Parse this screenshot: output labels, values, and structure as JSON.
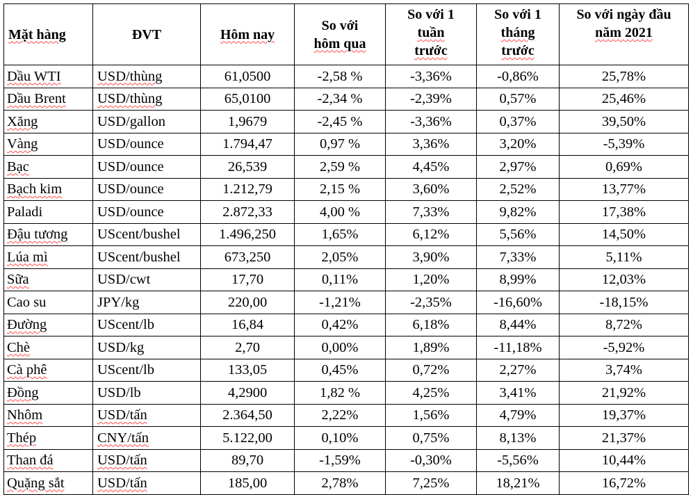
{
  "table": {
    "headers": {
      "item": "Mặt hàng",
      "unit": "ĐVT",
      "today": "Hôm nay",
      "vs_yesterday": [
        "So với",
        "hôm qua"
      ],
      "vs_week": [
        "So với 1",
        "tuần",
        "trước"
      ],
      "vs_month": [
        "So với 1",
        "tháng",
        "trước"
      ],
      "vs_year_start": [
        "So với ngày đầu",
        "năm 2021"
      ]
    },
    "rows": [
      {
        "item": "Dầu WTI",
        "unit": "USD/thùng",
        "today": "61,0500",
        "vs_yesterday": "-2,58 %",
        "vs_week": "-3,36%",
        "vs_month": "-0,86%",
        "vs_year_start": "25,78%"
      },
      {
        "item": "Dầu Brent",
        "unit": "USD/thùng",
        "today": "65,0100",
        "vs_yesterday": "-2,34 %",
        "vs_week": "-2,39%",
        "vs_month": "0,57%",
        "vs_year_start": "25,46%"
      },
      {
        "item": "Xăng",
        "unit": "USD/gallon",
        "today": "1,9679",
        "vs_yesterday": "-2,45 %",
        "vs_week": "-3,36%",
        "vs_month": "0,37%",
        "vs_year_start": "39,50%"
      },
      {
        "item": "Vàng",
        "unit": "USD/ounce",
        "today": "1.794,47",
        "vs_yesterday": "0,97 %",
        "vs_week": "3,36%",
        "vs_month": "3,20%",
        "vs_year_start": "-5,39%"
      },
      {
        "item": "Bạc",
        "unit": "USD/ounce",
        "today": "26,539",
        "vs_yesterday": "2,59 %",
        "vs_week": "4,45%",
        "vs_month": "2,97%",
        "vs_year_start": "0,69%"
      },
      {
        "item": "Bạch kim",
        "unit": "USD/ounce",
        "today": "1.212,79",
        "vs_yesterday": "2,15 %",
        "vs_week": "3,60%",
        "vs_month": "2,52%",
        "vs_year_start": "13,77%"
      },
      {
        "item": "Paladi",
        "unit": "USD/ounce",
        "today": "2.872,33",
        "vs_yesterday": "4,00 %",
        "vs_week": "7,33%",
        "vs_month": "9,82%",
        "vs_year_start": "17,38%"
      },
      {
        "item": "Đậu tương",
        "unit": "UScent/bushel",
        "today": "1.496,250",
        "vs_yesterday": "1,65%",
        "vs_week": "6,12%",
        "vs_month": "5,56%",
        "vs_year_start": "14,50%"
      },
      {
        "item": "Lúa mì",
        "unit": "UScent/bushel",
        "today": "673,250",
        "vs_yesterday": "2,05%",
        "vs_week": "3,90%",
        "vs_month": "7,33%",
        "vs_year_start": "5,11%"
      },
      {
        "item": "Sữa",
        "unit": "USD/cwt",
        "today": "17,70",
        "vs_yesterday": "0,11%",
        "vs_week": "1,20%",
        "vs_month": "8,99%",
        "vs_year_start": "12,03%"
      },
      {
        "item": "Cao su",
        "unit": "JPY/kg",
        "today": "220,00",
        "vs_yesterday": "-1,21%",
        "vs_week": "-2,35%",
        "vs_month": "-16,60%",
        "vs_year_start": "-18,15%"
      },
      {
        "item": "Đường",
        "unit": "UScent/lb",
        "today": "16,84",
        "vs_yesterday": "0,42%",
        "vs_week": "6,18%",
        "vs_month": "8,44%",
        "vs_year_start": "8,72%"
      },
      {
        "item": "Chè",
        "unit": "USD/kg",
        "today": "2,70",
        "vs_yesterday": "0,00%",
        "vs_week": "1,89%",
        "vs_month": "-11,18%",
        "vs_year_start": "-5,92%"
      },
      {
        "item": "Cà phê",
        "unit": "UScent/lb",
        "today": "133,05",
        "vs_yesterday": "0,45%",
        "vs_week": "0,72%",
        "vs_month": "2,27%",
        "vs_year_start": "3,74%"
      },
      {
        "item": "Đồng",
        "unit": "USD/lb",
        "today": "4,2900",
        "vs_yesterday": "1,82 %",
        "vs_week": "4,25%",
        "vs_month": "3,41%",
        "vs_year_start": "21,92%"
      },
      {
        "item": "Nhôm",
        "unit": "USD/tấn",
        "today": "2.364,50",
        "vs_yesterday": "2,22%",
        "vs_week": "1,56%",
        "vs_month": "4,79%",
        "vs_year_start": "19,37%"
      },
      {
        "item": "Thép",
        "unit": "CNY/tấn",
        "today": "5.122,00",
        "vs_yesterday": "0,10%",
        "vs_week": "0,75%",
        "vs_month": "8,13%",
        "vs_year_start": "21,37%"
      },
      {
        "item": "Than đá",
        "unit": "USD/tấn",
        "today": "89,70",
        "vs_yesterday": "-1,59%",
        "vs_week": "-0,30%",
        "vs_month": "-5,56%",
        "vs_year_start": "10,44%"
      },
      {
        "item": "Quặng sắt",
        "unit": "USD/tấn",
        "today": "185,00",
        "vs_yesterday": "2,78%",
        "vs_week": "7,25%",
        "vs_month": "18,21%",
        "vs_year_start": "16,72%"
      }
    ]
  },
  "colors": {
    "text": "#000000",
    "border": "#000000",
    "spellcheck_underline": "#ff4a4a",
    "background": "#ffffff"
  }
}
